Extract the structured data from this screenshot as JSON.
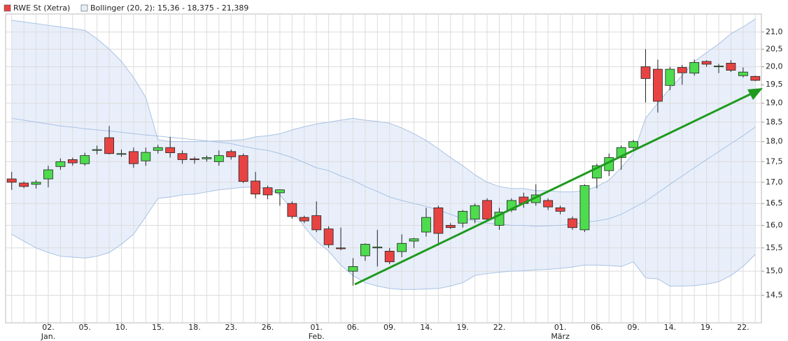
{
  "chart_data": {
    "type": "candlestick",
    "log_scale": true,
    "grid": true,
    "up_color": "#4ddc4d",
    "down_color": "#e84343",
    "categories": [
      null,
      null,
      null,
      "02.",
      null,
      null,
      "05.",
      null,
      null,
      "10.",
      null,
      null,
      "15.",
      null,
      null,
      "18.",
      null,
      null,
      "23.",
      null,
      null,
      "26.",
      null,
      null,
      null,
      "01.",
      null,
      null,
      "06.",
      null,
      null,
      "09.",
      null,
      null,
      "14.",
      null,
      null,
      "19.",
      null,
      null,
      "22.",
      null,
      null,
      null,
      null,
      "01.",
      null,
      null,
      "06.",
      null,
      null,
      "09.",
      null,
      null,
      "14.",
      null,
      null,
      "19.",
      null,
      null,
      "22.",
      null
    ],
    "month_labels": [
      null,
      null,
      null,
      "Jan.",
      null,
      null,
      null,
      null,
      null,
      null,
      null,
      null,
      null,
      null,
      null,
      null,
      null,
      null,
      null,
      null,
      null,
      null,
      null,
      null,
      null,
      "Feb.",
      null,
      null,
      null,
      null,
      null,
      null,
      null,
      null,
      null,
      null,
      null,
      null,
      null,
      null,
      null,
      null,
      null,
      null,
      null,
      "März",
      null,
      null,
      null,
      null,
      null,
      null,
      null,
      null,
      null,
      null,
      null,
      null,
      null,
      null,
      null,
      null
    ],
    "ylim": [
      13.95,
      21.54
    ],
    "yticks": [
      {
        "value": 14.5,
        "label": "14,5"
      },
      {
        "value": 15,
        "label": "15,0"
      },
      {
        "value": 15.5,
        "label": "15,5"
      },
      {
        "value": 16,
        "label": "16,0"
      },
      {
        "value": 16.5,
        "label": "16,5"
      },
      {
        "value": 17,
        "label": "17,0"
      },
      {
        "value": 17.5,
        "label": "17,5"
      },
      {
        "value": 18,
        "label": "18,0"
      },
      {
        "value": 18.5,
        "label": "18,5"
      },
      {
        "value": 19,
        "label": "19,0"
      },
      {
        "value": 19.5,
        "label": "19,5"
      },
      {
        "value": 20,
        "label": "20,0"
      },
      {
        "value": 20.5,
        "label": "20,5"
      },
      {
        "value": 21,
        "label": "21,0"
      }
    ],
    "series": [
      {
        "name": "RWE St (Xetra)",
        "color": "#e84343",
        "open": [
          17.08,
          16.98,
          16.95,
          17.08,
          17.38,
          17.55,
          17.45,
          17.8,
          18.1,
          17.7,
          17.75,
          17.52,
          17.78,
          17.85,
          17.7,
          17.57,
          17.57,
          17.5,
          17.75,
          17.65,
          17.03,
          16.87,
          16.75,
          16.5,
          16.18,
          16.22,
          15.92,
          15.5,
          15.0,
          15.33,
          15.5,
          15.43,
          15.42,
          15.65,
          15.85,
          16.4,
          16.0,
          16.05,
          16.14,
          16.57,
          16.0,
          16.35,
          16.65,
          16.52,
          16.57,
          16.4,
          16.15,
          15.9,
          17.1,
          17.28,
          17.6,
          17.85,
          20.0,
          19.93,
          19.48,
          19.98,
          19.82,
          20.15,
          20.0,
          20.1,
          19.75,
          19.73
        ],
        "high": [
          17.25,
          17.02,
          17.05,
          17.4,
          17.58,
          17.6,
          17.72,
          17.9,
          18.4,
          17.8,
          17.85,
          17.85,
          17.92,
          18.12,
          17.78,
          17.62,
          17.65,
          17.78,
          17.8,
          17.7,
          17.25,
          16.92,
          16.83,
          16.55,
          16.22,
          16.55,
          15.98,
          15.95,
          15.28,
          15.6,
          15.9,
          15.5,
          15.8,
          15.72,
          16.4,
          16.45,
          16.05,
          16.35,
          16.5,
          16.62,
          16.4,
          16.62,
          16.75,
          16.95,
          16.62,
          16.45,
          16.2,
          16.95,
          17.45,
          17.7,
          17.9,
          18.05,
          20.5,
          20.2,
          20.0,
          20.05,
          20.2,
          20.18,
          20.08,
          20.18,
          19.98,
          19.75
        ],
        "low": [
          16.82,
          16.86,
          16.85,
          16.88,
          17.3,
          17.4,
          17.4,
          17.68,
          17.68,
          17.62,
          17.35,
          17.4,
          17.7,
          17.6,
          17.45,
          17.45,
          17.5,
          17.4,
          17.55,
          16.98,
          16.62,
          16.6,
          16.45,
          16.15,
          16.05,
          15.85,
          15.5,
          15.45,
          14.7,
          15.22,
          15.1,
          15.15,
          15.3,
          15.5,
          15.75,
          15.55,
          15.92,
          15.95,
          16.05,
          16.1,
          15.9,
          16.3,
          16.4,
          16.45,
          16.35,
          16.25,
          15.9,
          15.85,
          16.85,
          17.15,
          17.3,
          17.8,
          19.02,
          18.75,
          19.35,
          19.5,
          19.75,
          20.0,
          19.82,
          19.85,
          19.7,
          19.6
        ],
        "close": [
          17.0,
          16.9,
          17.0,
          17.3,
          17.5,
          17.47,
          17.65,
          17.8,
          17.7,
          17.7,
          17.45,
          17.73,
          17.85,
          17.72,
          17.55,
          17.55,
          17.6,
          17.65,
          17.62,
          17.02,
          16.72,
          16.7,
          16.82,
          16.2,
          16.1,
          15.9,
          15.57,
          15.49,
          15.1,
          15.58,
          15.52,
          15.2,
          15.6,
          15.7,
          16.18,
          15.82,
          15.95,
          16.32,
          16.45,
          16.14,
          16.3,
          16.57,
          16.5,
          16.7,
          16.42,
          16.32,
          15.95,
          16.92,
          17.4,
          17.6,
          17.85,
          18.0,
          19.67,
          19.05,
          19.93,
          19.83,
          20.12,
          20.07,
          20.02,
          19.9,
          19.85,
          19.62
        ]
      },
      {
        "name": "Bollinger (20, 2): 15,36 - 18,375 - 21,389",
        "color": "#a9c2e3",
        "fill": "#e8effb",
        "upper": [
          21.35,
          21.3,
          21.25,
          21.2,
          21.15,
          21.1,
          21.05,
          20.8,
          20.5,
          20.15,
          19.7,
          19.15,
          18.05,
          18.0,
          18.0,
          18.0,
          18.01,
          18.02,
          18.03,
          18.05,
          18.12,
          18.15,
          18.2,
          18.3,
          18.38,
          18.45,
          18.5,
          18.55,
          18.6,
          18.55,
          18.52,
          18.47,
          18.35,
          18.2,
          18.03,
          17.82,
          17.6,
          17.4,
          17.18,
          17.0,
          16.9,
          16.85,
          16.85,
          16.8,
          16.8,
          16.77,
          16.77,
          16.8,
          16.9,
          17.05,
          17.35,
          17.7,
          18.6,
          19.0,
          19.4,
          19.75,
          20.15,
          20.4,
          20.65,
          20.95,
          21.15,
          21.389
        ],
        "middle": [
          18.6,
          18.55,
          18.5,
          18.45,
          18.4,
          18.37,
          18.33,
          18.3,
          18.27,
          18.24,
          18.2,
          18.17,
          18.14,
          18.11,
          18.08,
          18.05,
          18.02,
          17.98,
          17.95,
          17.88,
          17.82,
          17.78,
          17.7,
          17.6,
          17.48,
          17.35,
          17.28,
          17.15,
          17.05,
          16.9,
          16.78,
          16.65,
          16.57,
          16.5,
          16.43,
          16.35,
          16.25,
          16.15,
          16.1,
          16.05,
          16.03,
          16.0,
          16.0,
          15.98,
          15.99,
          16.0,
          16.03,
          16.07,
          16.1,
          16.15,
          16.25,
          16.4,
          16.55,
          16.75,
          16.95,
          17.15,
          17.35,
          17.55,
          17.75,
          17.95,
          18.15,
          18.375
        ],
        "lower": [
          15.8,
          15.65,
          15.5,
          15.4,
          15.32,
          15.3,
          15.28,
          15.32,
          15.4,
          15.58,
          15.8,
          16.2,
          16.62,
          16.65,
          16.7,
          16.72,
          16.77,
          16.82,
          16.85,
          16.88,
          16.88,
          16.85,
          16.7,
          16.37,
          15.97,
          15.65,
          15.43,
          15.13,
          14.91,
          14.76,
          14.69,
          14.64,
          14.62,
          14.62,
          14.63,
          14.64,
          14.69,
          14.76,
          14.91,
          14.95,
          14.98,
          15.0,
          15.01,
          15.03,
          15.04,
          15.06,
          15.09,
          15.13,
          15.13,
          15.12,
          15.1,
          15.2,
          14.86,
          14.84,
          14.69,
          14.69,
          14.7,
          14.73,
          14.78,
          14.91,
          15.1,
          15.36
        ]
      }
    ]
  }
}
